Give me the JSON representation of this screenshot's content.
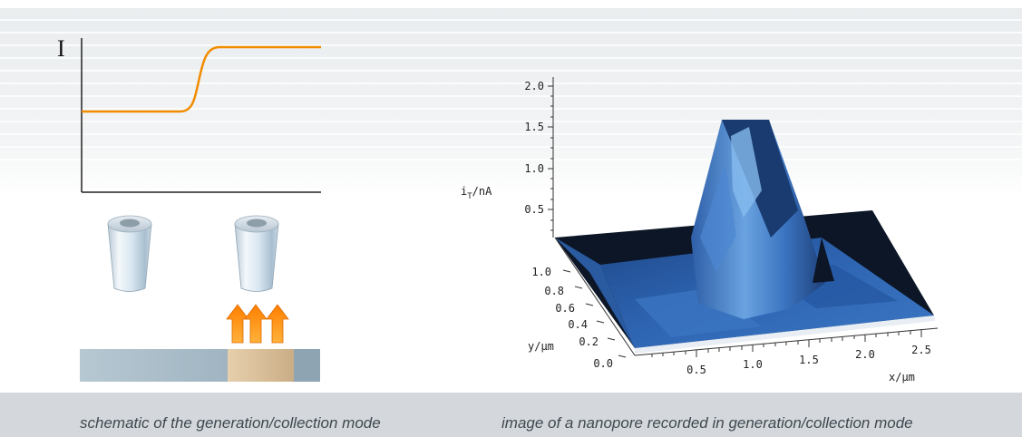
{
  "schematic": {
    "current_symbol": "I",
    "caption": "schematic of the generation/collection mode"
  },
  "plot3d": {
    "caption": "image of a nanopore recorded in generation/collection mode",
    "z_axis": {
      "label_main": "i",
      "label_sub": "T",
      "label_unit": "/nA",
      "ticks": [
        "2.0",
        "1.5",
        "1.0",
        "0.5"
      ]
    },
    "y_axis": {
      "label": "y/µm",
      "ticks": [
        "1.0",
        "0.8",
        "0.6",
        "0.4",
        "0.2",
        "0.0"
      ]
    },
    "x_axis": {
      "label": "x/µm",
      "ticks": [
        "0.5",
        "1.0",
        "1.5",
        "2.0",
        "2.5"
      ]
    }
  },
  "colors": {
    "curve": "#f28c00",
    "arrow_fill": "#f58a0e",
    "surface_dark": "#0b1424",
    "surface_blue": "#2f66b4",
    "surface_light": "#7fb4e8"
  }
}
